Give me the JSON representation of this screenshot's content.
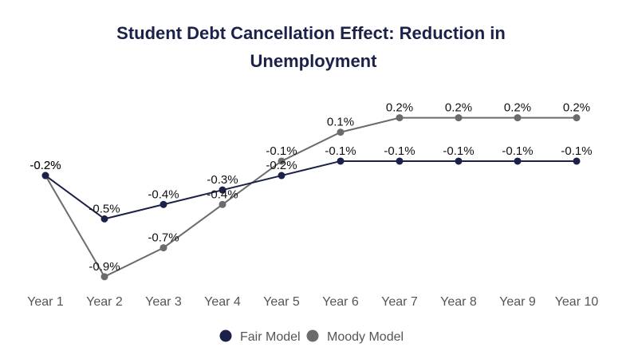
{
  "chart_data": {
    "type": "line",
    "title_lines": [
      "Student Debt Cancellation Effect: Reduction in",
      "Unemployment"
    ],
    "categories": [
      "Year 1",
      "Year 2",
      "Year 3",
      "Year 4",
      "Year 5",
      "Year 6",
      "Year 7",
      "Year 8",
      "Year 9",
      "Year 10"
    ],
    "ylim": [
      -1.0,
      0.3
    ],
    "grid": false,
    "legend_position": "bottom-center",
    "series": [
      {
        "name": "Fair Model",
        "color": "#1b2148",
        "values": [
          -0.2,
          -0.5,
          -0.4,
          -0.3,
          -0.2,
          -0.1,
          -0.1,
          -0.1,
          -0.1,
          -0.1
        ],
        "labels": [
          "-0.2%",
          "-0.5%",
          "-0.4%",
          "-0.3%",
          "-0.2%",
          "-0.1%",
          "-0.1%",
          "-0.1%",
          "-0.1%",
          "-0.1%"
        ]
      },
      {
        "name": "Moody Model",
        "color": "#6b6b6b",
        "values": [
          -0.2,
          -0.9,
          -0.7,
          -0.4,
          -0.1,
          0.1,
          0.2,
          0.2,
          0.2,
          0.2
        ],
        "labels": [
          "-0.2%",
          "-0.9%",
          "-0.7%",
          "-0.4%",
          "-0.1%",
          "0.1%",
          "0.2%",
          "0.2%",
          "0.2%",
          "0.2%"
        ]
      }
    ],
    "title_color": "#1b2148"
  }
}
